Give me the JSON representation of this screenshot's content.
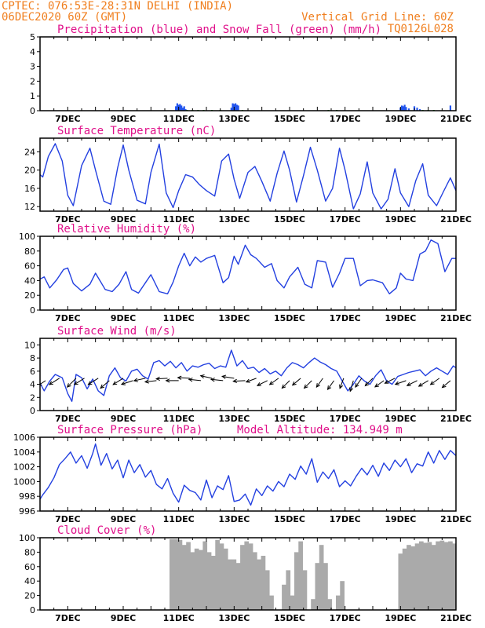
{
  "header": {
    "line1": "CPTEC:   076:53E-28:31N   DELHI (INDIA)",
    "line2": "06DEC2020 60Z (GMT)",
    "grid_note": "Vertical Grid Line: 60Z",
    "code": "TQ0126L028"
  },
  "colors": {
    "line": "#2340e0",
    "precip": "#2255ee",
    "snow": "#22aa22",
    "cloud": "#aaaaaa",
    "arrow": "#000000"
  },
  "x_axis": {
    "start_day": 6.0,
    "end_day": 21.0,
    "tick_days": [
      7,
      9,
      11,
      13,
      15,
      17,
      19,
      21
    ],
    "tick_labels": [
      "7DEC",
      "9DEC",
      "11DEC",
      "13DEC",
      "15DEC",
      "17DEC",
      "19DEC",
      "21DEC"
    ]
  },
  "chart_data": [
    {
      "type": "bar",
      "title": "Precipitation (blue) and Snow Fall (green) (mm/h)",
      "ylim": [
        0,
        5
      ],
      "yticks": [
        0,
        1,
        2,
        3,
        4,
        5
      ],
      "series": [
        {
          "name": "Precipitation",
          "points": [
            [
              10.9,
              0.3
            ],
            [
              10.95,
              0.5
            ],
            [
              11.0,
              0.4
            ],
            [
              11.05,
              0.45
            ],
            [
              11.1,
              0.35
            ],
            [
              11.15,
              0.2
            ],
            [
              11.2,
              0.3
            ],
            [
              11.25,
              0.1
            ],
            [
              12.9,
              0.2
            ],
            [
              12.95,
              0.5
            ],
            [
              13.0,
              0.45
            ],
            [
              13.05,
              0.5
            ],
            [
              13.1,
              0.4
            ],
            [
              13.15,
              0.35
            ],
            [
              19.0,
              0.2
            ],
            [
              19.05,
              0.35
            ],
            [
              19.1,
              0.3
            ],
            [
              19.15,
              0.4
            ],
            [
              19.2,
              0.25
            ],
            [
              19.3,
              0.15
            ],
            [
              19.5,
              0.3
            ],
            [
              19.6,
              0.2
            ],
            [
              19.7,
              0.1
            ],
            [
              20.8,
              0.35
            ]
          ]
        },
        {
          "name": "Snow Fall",
          "points": [
            [
              11.3,
              0.05
            ],
            [
              11.5,
              0.05
            ],
            [
              11.7,
              0.05
            ],
            [
              11.9,
              0.05
            ],
            [
              12.2,
              0.05
            ],
            [
              12.5,
              0.05
            ],
            [
              13.3,
              0.05
            ],
            [
              16.4,
              0.05
            ],
            [
              16.7,
              0.05
            ],
            [
              19.8,
              0.05
            ],
            [
              20.0,
              0.05
            ],
            [
              20.2,
              0.05
            ]
          ]
        }
      ]
    },
    {
      "type": "line",
      "title": "Surface Temperature (nC)",
      "ylim": [
        11,
        27
      ],
      "yticks": [
        12,
        16,
        20,
        24
      ],
      "x": [
        6.0,
        6.1,
        6.3,
        6.55,
        6.8,
        7.0,
        7.2,
        7.5,
        7.8,
        8.0,
        8.3,
        8.55,
        8.8,
        9.0,
        9.2,
        9.5,
        9.8,
        10.0,
        10.3,
        10.55,
        10.8,
        11.0,
        11.25,
        11.5,
        11.75,
        12.0,
        12.3,
        12.55,
        12.8,
        13.0,
        13.2,
        13.5,
        13.75,
        14.0,
        14.3,
        14.55,
        14.8,
        15.0,
        15.25,
        15.5,
        15.75,
        16.0,
        16.3,
        16.55,
        16.8,
        17.0,
        17.3,
        17.55,
        17.8,
        18.0,
        18.3,
        18.55,
        18.8,
        19.0,
        19.3,
        19.55,
        19.8,
        20.0,
        20.3,
        20.55,
        20.8,
        21.0
      ],
      "y": [
        19,
        18.5,
        23,
        25.8,
        22,
        14.5,
        12.2,
        21,
        24.8,
        20,
        13.2,
        12.5,
        20.5,
        25.5,
        20,
        13.4,
        12.6,
        19.5,
        25.7,
        15,
        11.8,
        15.5,
        19,
        18.5,
        16.8,
        15.5,
        14.3,
        22,
        23.5,
        18,
        13.8,
        19.5,
        20.8,
        17.5,
        13.2,
        19.3,
        24.2,
        20,
        13,
        18.8,
        25,
        20,
        13.2,
        16,
        24.8,
        20,
        11.5,
        14.8,
        21.8,
        15,
        11.5,
        13.6,
        20.3,
        15,
        12,
        17.7,
        21.4,
        14.5,
        12.2,
        15.3,
        18.3,
        15.5
      ],
      "y_end": 11.5
    },
    {
      "type": "line",
      "title": "Relative Humidity (%)",
      "ylim": [
        0,
        100
      ],
      "yticks": [
        0,
        20,
        40,
        60,
        80,
        100
      ],
      "x": [
        6.0,
        6.15,
        6.35,
        6.6,
        6.85,
        7.0,
        7.2,
        7.5,
        7.8,
        8.0,
        8.35,
        8.6,
        8.85,
        9.1,
        9.3,
        9.55,
        9.8,
        10.0,
        10.3,
        10.6,
        10.8,
        11.0,
        11.2,
        11.4,
        11.6,
        11.8,
        12.0,
        12.3,
        12.6,
        12.8,
        13.0,
        13.15,
        13.4,
        13.6,
        13.8,
        14.1,
        14.35,
        14.55,
        14.8,
        15.0,
        15.3,
        15.55,
        15.8,
        16.0,
        16.3,
        16.55,
        16.8,
        17.0,
        17.3,
        17.55,
        17.8,
        18.0,
        18.35,
        18.6,
        18.85,
        19.0,
        19.2,
        19.45,
        19.7,
        19.9,
        20.1,
        20.35,
        20.6,
        20.85,
        21.0
      ],
      "y": [
        42,
        45,
        30,
        41,
        55,
        57,
        36,
        26,
        35,
        50,
        28,
        25,
        35,
        52,
        28,
        23,
        37,
        48,
        25,
        22,
        38,
        60,
        77,
        60,
        72,
        65,
        70,
        74,
        37,
        44,
        73,
        62,
        88,
        75,
        70,
        58,
        63,
        40,
        30,
        45,
        58,
        35,
        30,
        67,
        65,
        31,
        50,
        70,
        70,
        33,
        40,
        41,
        37,
        22,
        30,
        50,
        42,
        40,
        76,
        80,
        95,
        90,
        52,
        70,
        70
      ]
    },
    {
      "type": "line",
      "title": "Surface Wind (m/s)",
      "ylim": [
        0,
        11
      ],
      "yticks": [
        0,
        2,
        4,
        6,
        8,
        10
      ],
      "x": [
        6.0,
        6.15,
        6.35,
        6.55,
        6.8,
        7.0,
        7.15,
        7.3,
        7.5,
        7.7,
        7.9,
        8.1,
        8.3,
        8.5,
        8.7,
        8.9,
        9.1,
        9.3,
        9.5,
        9.7,
        9.9,
        10.1,
        10.3,
        10.5,
        10.7,
        10.9,
        11.1,
        11.3,
        11.5,
        11.7,
        11.9,
        12.1,
        12.3,
        12.5,
        12.7,
        12.9,
        13.1,
        13.3,
        13.5,
        13.7,
        13.9,
        14.1,
        14.3,
        14.5,
        14.7,
        14.9,
        15.1,
        15.3,
        15.5,
        15.7,
        15.9,
        16.1,
        16.3,
        16.5,
        16.7,
        16.9,
        17.1,
        17.3,
        17.5,
        17.7,
        17.9,
        18.1,
        18.3,
        18.5,
        18.7,
        18.9,
        19.1,
        19.3,
        19.5,
        19.7,
        19.9,
        20.1,
        20.3,
        20.5,
        20.7,
        20.9,
        21.0
      ],
      "y": [
        4.2,
        3.0,
        4.5,
        5.5,
        5.0,
        2.6,
        1.4,
        5.5,
        5.0,
        3.3,
        4.8,
        3.0,
        2.3,
        5.3,
        6.5,
        5.0,
        4.5,
        6.0,
        6.3,
        5.3,
        4.8,
        7.3,
        7.6,
        6.8,
        7.5,
        6.5,
        7.3,
        6.0,
        6.8,
        6.6,
        7.0,
        7.2,
        6.4,
        6.8,
        6.6,
        9.2,
        6.8,
        7.6,
        6.4,
        6.6,
        5.8,
        6.4,
        5.6,
        6.0,
        5.3,
        6.5,
        7.3,
        7.0,
        6.5,
        7.3,
        8.0,
        7.4,
        7.0,
        6.4,
        6.0,
        4.5,
        3.0,
        4.0,
        5.3,
        4.5,
        4.0,
        5.3,
        6.2,
        4.5,
        4.0,
        5.2,
        5.5,
        5.8,
        6.0,
        6.2,
        5.3,
        6.0,
        6.5,
        6.0,
        5.5,
        6.8,
        6.5
      ],
      "vectors": [
        [
          6.2,
          -0.6,
          -0.4
        ],
        [
          6.7,
          -0.8,
          -0.5
        ],
        [
          7.3,
          -0.7,
          -0.7
        ],
        [
          7.6,
          -0.8,
          -0.5
        ],
        [
          8.1,
          -0.8,
          -0.5
        ],
        [
          8.5,
          -0.7,
          -0.6
        ],
        [
          9.0,
          -0.8,
          -0.5
        ],
        [
          9.35,
          -0.9,
          -0.3
        ],
        [
          9.8,
          -0.9,
          -0.2
        ],
        [
          10.2,
          -0.9,
          -0.1
        ],
        [
          10.6,
          -0.9,
          -0.05
        ],
        [
          11.0,
          -1.0,
          0.0
        ],
        [
          11.4,
          -0.95,
          0.05
        ],
        [
          11.8,
          -0.95,
          0.1
        ],
        [
          12.2,
          -0.9,
          0.2
        ],
        [
          12.6,
          -0.95,
          0.1
        ],
        [
          13.0,
          -0.95,
          0.15
        ],
        [
          13.4,
          -0.95,
          -0.05
        ],
        [
          13.8,
          -0.8,
          -0.3
        ],
        [
          14.2,
          -0.8,
          -0.4
        ],
        [
          14.6,
          -0.7,
          -0.5
        ],
        [
          15.0,
          -0.6,
          -0.6
        ],
        [
          15.4,
          -0.65,
          -0.55
        ],
        [
          15.8,
          -0.6,
          -0.6
        ],
        [
          16.2,
          -0.5,
          -0.7
        ],
        [
          16.6,
          -0.5,
          -0.7
        ],
        [
          16.95,
          -0.3,
          -0.8
        ],
        [
          17.3,
          -0.25,
          -0.85
        ],
        [
          17.6,
          -0.5,
          -0.7
        ],
        [
          18.0,
          -0.6,
          -0.6
        ],
        [
          18.4,
          -0.7,
          -0.5
        ],
        [
          18.8,
          -0.8,
          -0.4
        ],
        [
          19.2,
          -0.85,
          -0.3
        ],
        [
          19.6,
          -0.8,
          -0.4
        ],
        [
          20.0,
          -0.75,
          -0.45
        ],
        [
          20.4,
          -0.7,
          -0.5
        ],
        [
          20.8,
          -0.65,
          -0.55
        ]
      ]
    },
    {
      "type": "line",
      "title": "Surface Pressure (hPa)",
      "subtitle": "Model Altitude: 134.949 m",
      "ylim": [
        996,
        1006
      ],
      "yticks": [
        996,
        998,
        1000,
        1002,
        1004,
        1006
      ],
      "x": [
        6.0,
        6.1,
        6.3,
        6.5,
        6.7,
        6.9,
        7.1,
        7.3,
        7.5,
        7.7,
        7.9,
        8.0,
        8.2,
        8.4,
        8.6,
        8.8,
        9.0,
        9.2,
        9.4,
        9.6,
        9.8,
        10.0,
        10.2,
        10.4,
        10.6,
        10.8,
        11.0,
        11.2,
        11.4,
        11.6,
        11.8,
        12.0,
        12.2,
        12.4,
        12.6,
        12.8,
        13.0,
        13.2,
        13.4,
        13.6,
        13.8,
        14.0,
        14.2,
        14.4,
        14.6,
        14.8,
        15.0,
        15.2,
        15.4,
        15.6,
        15.8,
        16.0,
        16.2,
        16.4,
        16.6,
        16.8,
        17.0,
        17.2,
        17.4,
        17.6,
        17.8,
        18.0,
        18.2,
        18.4,
        18.6,
        18.8,
        19.0,
        19.2,
        19.4,
        19.6,
        19.8,
        20.0,
        20.2,
        20.4,
        20.6,
        20.8,
        21.0
      ],
      "y": [
        997.6,
        998.2,
        999.2,
        1000.5,
        1002.3,
        1003.1,
        1004.0,
        1002.5,
        1003.5,
        1001.8,
        1003.8,
        1005.1,
        1002.2,
        1003.8,
        1001.7,
        1002.9,
        1000.5,
        1002.9,
        1001.2,
        1002.3,
        1000.6,
        1001.5,
        999.6,
        999.0,
        1000.4,
        998.4,
        997.2,
        999.5,
        998.8,
        998.5,
        997.5,
        1000.2,
        997.8,
        999.4,
        998.9,
        1000.8,
        997.3,
        997.5,
        998.3,
        996.8,
        999.0,
        998.1,
        999.4,
        998.7,
        1000.0,
        999.3,
        1001.0,
        1000.3,
        1002.1,
        1001.0,
        1003.1,
        999.9,
        1001.3,
        1000.4,
        1001.6,
        999.3,
        1000.1,
        999.4,
        1000.7,
        1001.8,
        1000.9,
        1002.2,
        1000.7,
        1002.5,
        1001.5,
        1002.9,
        1002.0,
        1003.1,
        1001.2,
        1002.4,
        1002.1,
        1004.0,
        1002.5,
        1004.2,
        1003.0,
        1004.2,
        1003.5
      ]
    },
    {
      "type": "bar",
      "title": "Cloud Cover (%)",
      "ylim": [
        0,
        100
      ],
      "yticks": [
        0,
        20,
        40,
        60,
        80,
        100
      ],
      "x": [
        10.75,
        10.9,
        11.05,
        11.2,
        11.35,
        11.5,
        11.65,
        11.8,
        11.95,
        12.1,
        12.25,
        12.4,
        12.55,
        12.7,
        12.85,
        13.0,
        13.15,
        13.3,
        13.45,
        13.6,
        13.75,
        13.9,
        14.05,
        14.2,
        14.35,
        14.5,
        14.65,
        14.8,
        14.95,
        15.1,
        15.25,
        15.4,
        15.55,
        15.7,
        15.85,
        16.0,
        16.15,
        16.3,
        16.45,
        16.6,
        16.75,
        16.9,
        17.05,
        17.2,
        17.35,
        17.5,
        17.65,
        17.8,
        17.95,
        18.1,
        18.25,
        18.4,
        18.55,
        18.7,
        18.85,
        19.0,
        19.15,
        19.3,
        19.45,
        19.6,
        19.75,
        19.9,
        20.05,
        20.2,
        20.35,
        20.5,
        20.65,
        20.8,
        20.95
      ],
      "values": [
        98,
        98,
        97,
        90,
        94,
        80,
        85,
        83,
        95,
        80,
        75,
        97,
        92,
        85,
        70,
        70,
        65,
        90,
        95,
        92,
        80,
        70,
        75,
        55,
        20,
        0,
        0,
        35,
        55,
        20,
        80,
        95,
        55,
        0,
        15,
        65,
        90,
        65,
        15,
        0,
        20,
        40,
        0,
        0,
        0,
        0,
        0,
        0,
        0,
        0,
        0,
        0,
        0,
        0,
        0,
        78,
        85,
        90,
        88,
        92,
        95,
        93,
        94,
        90,
        95,
        96,
        94,
        95,
        92
      ]
    }
  ]
}
